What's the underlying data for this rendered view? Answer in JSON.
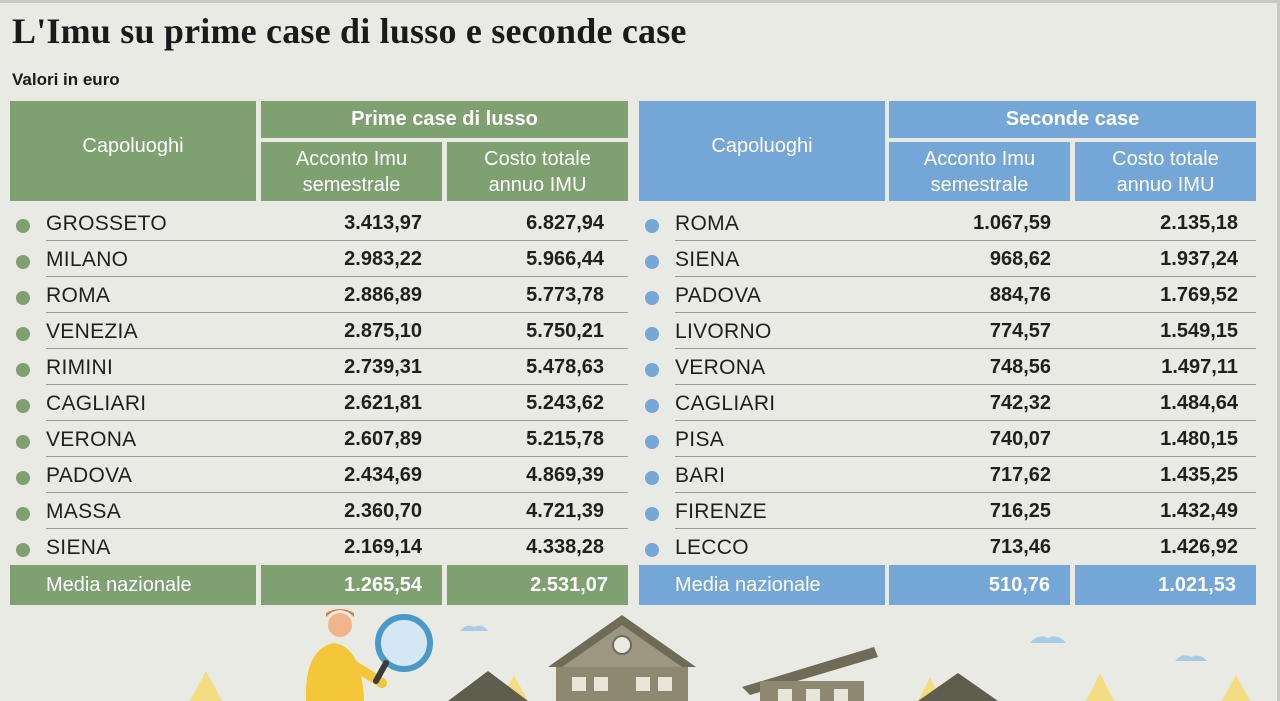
{
  "title": "L'Imu su prime case di lusso e seconde case",
  "subtitle": "Valori in euro",
  "left": {
    "group": "Prime case di lusso",
    "city_header": "Capoluoghi",
    "col1": "Acconto Imu\nsemestrale",
    "col2": "Costo totale\nannuo IMU",
    "rows": [
      {
        "city": "GROSSETO",
        "v1": "3.413,97",
        "v2": "6.827,94"
      },
      {
        "city": "MILANO",
        "v1": "2.983,22",
        "v2": "5.966,44"
      },
      {
        "city": "ROMA",
        "v1": "2.886,89",
        "v2": "5.773,78"
      },
      {
        "city": "VENEZIA",
        "v1": "2.875,10",
        "v2": "5.750,21"
      },
      {
        "city": "RIMINI",
        "v1": "2.739,31",
        "v2": "5.478,63"
      },
      {
        "city": "CAGLIARI",
        "v1": "2.621,81",
        "v2": "5.243,62"
      },
      {
        "city": "VERONA",
        "v1": "2.607,89",
        "v2": "5.215,78"
      },
      {
        "city": "PADOVA",
        "v1": "2.434,69",
        "v2": "4.869,39"
      },
      {
        "city": "MASSA",
        "v1": "2.360,70",
        "v2": "4.721,39"
      },
      {
        "city": "SIENA",
        "v1": "2.169,14",
        "v2": "4.338,28"
      }
    ],
    "footer": {
      "label": "Media nazionale",
      "v1": "1.265,54",
      "v2": "2.531,07"
    }
  },
  "right": {
    "group": "Seconde case",
    "city_header": "Capoluoghi",
    "col1": "Acconto Imu\nsemestrale",
    "col2": "Costo totale\nannuo IMU",
    "rows": [
      {
        "city": "ROMA",
        "v1": "1.067,59",
        "v2": "2.135,18"
      },
      {
        "city": "SIENA",
        "v1": "968,62",
        "v2": "1.937,24"
      },
      {
        "city": "PADOVA",
        "v1": "884,76",
        "v2": "1.769,52"
      },
      {
        "city": "LIVORNO",
        "v1": "774,57",
        "v2": "1.549,15"
      },
      {
        "city": "VERONA",
        "v1": "748,56",
        "v2": "1.497,11"
      },
      {
        "city": "CAGLIARI",
        "v1": "742,32",
        "v2": "1.484,64"
      },
      {
        "city": "PISA",
        "v1": "740,07",
        "v2": "1.480,15"
      },
      {
        "city": "BARI",
        "v1": "717,62",
        "v2": "1.435,25"
      },
      {
        "city": "FIRENZE",
        "v1": "716,25",
        "v2": "1.432,49"
      },
      {
        "city": "LECCO",
        "v1": "713,46",
        "v2": "1.426,92"
      }
    ],
    "footer": {
      "label": "Media nazionale",
      "v1": "510,76",
      "v2": "1.021,53"
    }
  },
  "colors": {
    "green": "#7fa070",
    "blue": "#74a6d7",
    "background": "#eaeae4"
  },
  "icons": [
    "person-with-magnifier-icon",
    "house-icon"
  ]
}
